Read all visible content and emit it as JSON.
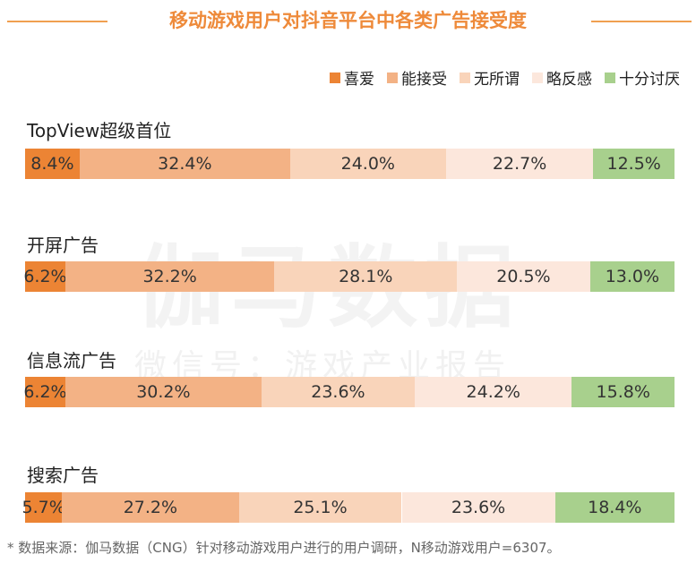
{
  "watermark": {
    "main": "伽马数据",
    "sub": "微信号：游戏产业报告"
  },
  "footnote": "* 数据来源：伽马数据（CNG）针对移动游戏用户进行的用户调研，N移动游戏用户=6307。",
  "chart_data": {
    "type": "bar",
    "orientation": "horizontal",
    "stacked": true,
    "percent": true,
    "title": "移动游戏用户对抖音平台中各类广告接受度",
    "legend_position": "top-right",
    "categories": [
      "TopView超级首位",
      "开屏广告",
      "信息流广告",
      "搜索广告"
    ],
    "series": [
      {
        "name": "喜爱",
        "color": "#ec8434",
        "values": [
          8.4,
          6.2,
          6.2,
          5.7
        ]
      },
      {
        "name": "能接受",
        "color": "#f3b285",
        "values": [
          32.4,
          32.2,
          30.2,
          27.2
        ]
      },
      {
        "name": "无所谓",
        "color": "#f9d4ba",
        "values": [
          24.0,
          28.1,
          23.6,
          25.1
        ]
      },
      {
        "name": "略反感",
        "color": "#fce7dc",
        "values": [
          22.7,
          20.5,
          24.2,
          23.6
        ]
      },
      {
        "name": "十分讨厌",
        "color": "#a8d08d",
        "values": [
          12.5,
          13.0,
          15.8,
          18.4
        ]
      }
    ],
    "data_labels": [
      [
        "8.4%",
        "32.4%",
        "24.0%",
        "22.7%",
        "12.5%"
      ],
      [
        "6.2%",
        "32.2%",
        "28.1%",
        "20.5%",
        "13.0%"
      ],
      [
        "6.2%",
        "30.2%",
        "23.6%",
        "24.2%",
        "15.8%"
      ],
      [
        "5.7%",
        "27.2%",
        "25.1%",
        "23.6%",
        "18.4%"
      ]
    ]
  }
}
